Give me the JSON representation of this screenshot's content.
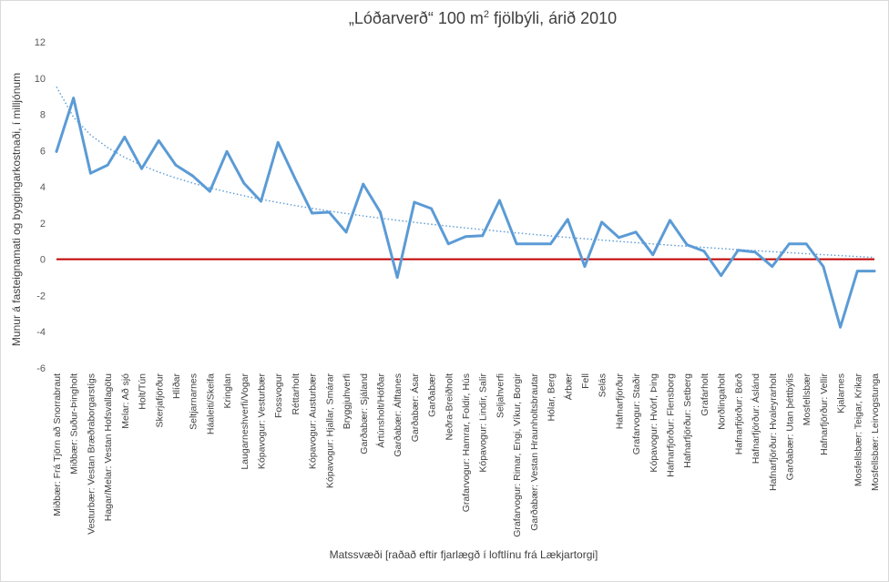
{
  "chart_data": {
    "type": "line",
    "title_main": "„Lóðarverð“ 100 m",
    "title_sup": "2",
    "title_rest": " fjölbýli, árið 2010",
    "xlabel": "Matssvæði [raðað eftir fjarlægð í loftlínu frá Lækjartorgi]",
    "ylabel": "Munur á fasteignamati og byggingarkostnaði, í milljónum",
    "ylim": [
      -6,
      12
    ],
    "yticks": [
      "12",
      "10",
      "8",
      "6",
      "4",
      "2",
      "0",
      "-2",
      "-4",
      "-6"
    ],
    "grid": false,
    "categories": [
      "Miðbær: Frá Tjörn að Snorrabraut",
      "Miðbær: Suður-Þingholt",
      "Vesturbær: Vestan Bræðraborgarstígs",
      "Hagar/Melar: Vestan Hofsvallagötu",
      "Melar: Að sjó",
      "Holt/Tún",
      "Skerjafjörður",
      "Hlíðar",
      "Seltjarnarnes",
      "Háaleiti/Skeifa",
      "Kringlan",
      "Laugarneshverfi/Vogar",
      "Kópavogur: Vesturbær",
      "Fossvogur",
      "Réttarholt",
      "Kópavogur: Austurbær",
      "Kópavogur: Hjallar, Smárar",
      "Bryggjuhverfi",
      "Garðabær: Sjáland",
      "Ártúnsholt/Höfðar",
      "Garðabær: Álftanes",
      "Garðabær: Ásar",
      "Garðabær",
      "Neðra-Breiðholt",
      "Grafarvogur: Hamrar, Foldir, Hús",
      "Kópavogur: Lindir, Salir",
      "Seljahverfi",
      "Grafarvogur: Rimar, Engi, Víkur, Borgir",
      "Garðabær: Vestan Hraunholtsbrautar",
      "Hólar, Berg",
      "Árbær",
      "Fell",
      "Selás",
      "Hafnarfjörður",
      "Grafarvogur: Staðir",
      "Kópavogur: Hvörf, Þing",
      "Hafnarfjörður: Flensborg",
      "Hafnarfjörður: Setberg",
      "Grafarholt",
      "Norðlingaholt",
      "Hafnarfjörður: Börð",
      "Hafnarfjörður: Áslánd",
      "Hafnarfjörður: Hvaleyrarholt",
      "Garðabær: Utan þéttbýlis",
      "Mosfellsbær",
      "Hafnarfjörður: Vellir",
      "Kjalarnes",
      "Mosfellsbær: Teigar, Krikar",
      "Mosfellsbær: Leirvogstunga"
    ],
    "series": [
      {
        "values": [
          5.95,
          8.9,
          4.75,
          5.2,
          6.75,
          5.0,
          6.55,
          5.2,
          4.6,
          3.75,
          5.95,
          4.2,
          3.2,
          6.45,
          4.45,
          2.55,
          2.6,
          1.5,
          4.15,
          2.6,
          -1.0,
          3.15,
          2.8,
          0.85,
          1.25,
          1.3,
          3.25,
          0.85,
          0.85,
          0.85,
          2.2,
          -0.4,
          2.05,
          1.2,
          1.5,
          0.25,
          2.15,
          0.8,
          0.45,
          -0.9,
          0.5,
          0.4,
          -0.4,
          0.85,
          0.85,
          -0.4,
          -3.75,
          -0.65,
          -0.65
        ],
        "color": "#5b9bd5"
      }
    ],
    "trendline": {
      "type": "logarithmic",
      "a": 9.52,
      "b": -2.42,
      "color": "#5b9bd5"
    },
    "zero_line_color": "#c00000"
  }
}
